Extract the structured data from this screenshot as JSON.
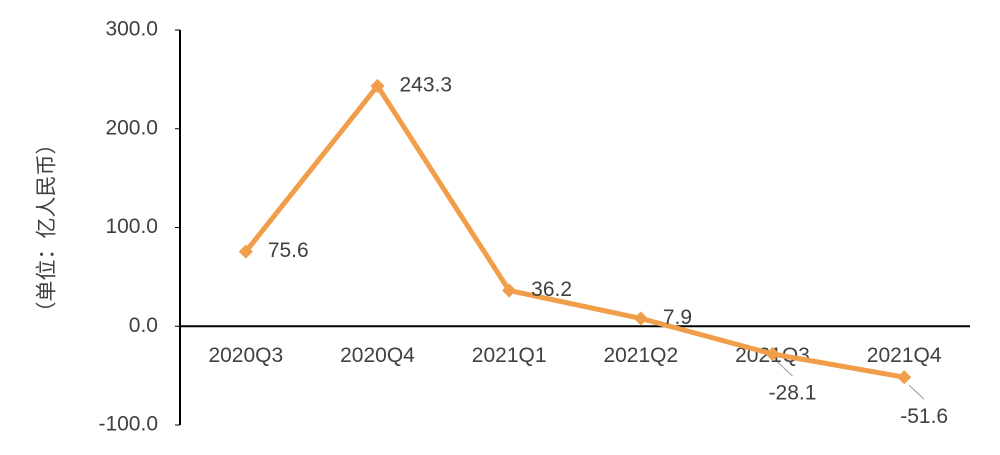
{
  "chart_data": {
    "type": "line",
    "y_label": "（单位：亿人民币）",
    "categories": [
      "2020Q3",
      "2020Q4",
      "2021Q1",
      "2021Q2",
      "2021Q3",
      "2021Q4"
    ],
    "series": [
      {
        "name": "value",
        "color": "#f19e4b",
        "values": [
          75.6,
          243.3,
          36.2,
          7.9,
          -28.1,
          -51.6
        ]
      }
    ],
    "ylim": [
      -100,
      300
    ],
    "yticks": [
      {
        "value": -100,
        "label": "-100.0"
      },
      {
        "value": 0,
        "label": "0.0"
      },
      {
        "value": 100,
        "label": "100.0"
      },
      {
        "value": 200,
        "label": "200.0"
      },
      {
        "value": 300,
        "label": "300.0"
      }
    ]
  }
}
